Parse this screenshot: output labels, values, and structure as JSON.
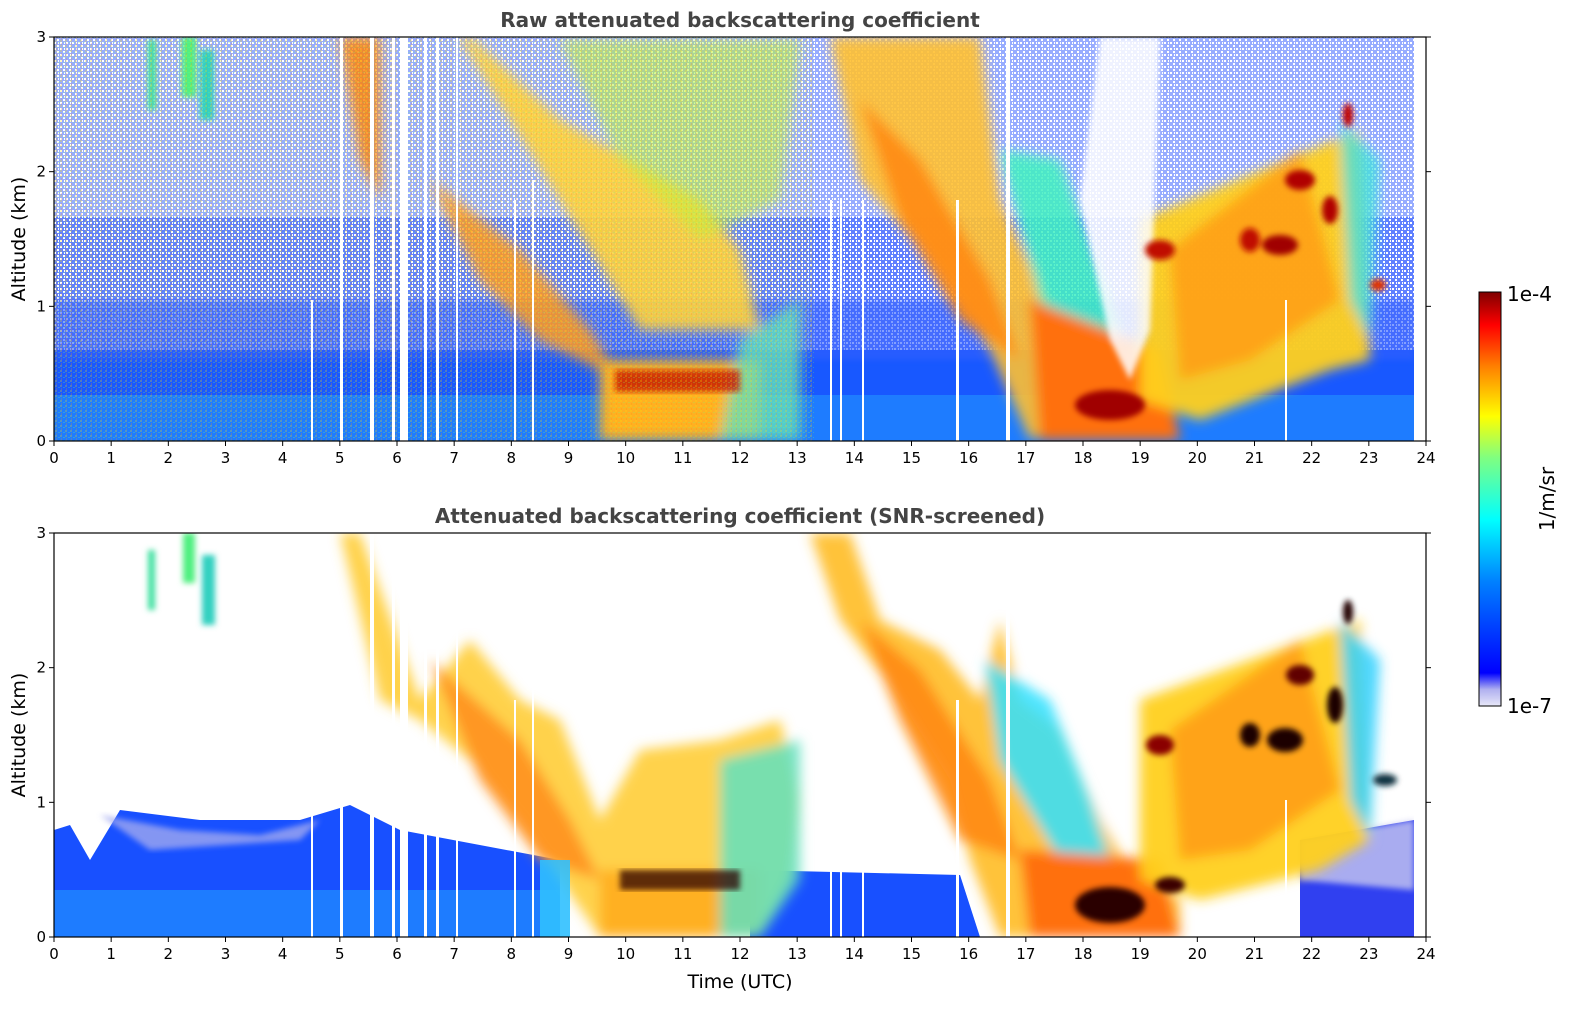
{
  "chart_data": [
    {
      "type": "heatmap",
      "title": "Raw attenuated backscattering coefficient",
      "xlabel": "",
      "ylabel": "Altitude (km)",
      "xlim": [
        0,
        24
      ],
      "ylim": [
        0,
        3
      ],
      "x_ticks": [
        "0",
        "1",
        "2",
        "3",
        "4",
        "5",
        "6",
        "7",
        "8",
        "9",
        "10",
        "11",
        "12",
        "13",
        "14",
        "15",
        "16",
        "17",
        "18",
        "19",
        "20",
        "21",
        "22",
        "23",
        "24"
      ],
      "y_ticks": [
        "0",
        "1",
        "2",
        "3"
      ],
      "grid": false,
      "screened": false
    },
    {
      "type": "heatmap",
      "title": "Attenuated backscattering coefficient (SNR-screened)",
      "xlabel": "Time (UTC)",
      "ylabel": "Altitude (km)",
      "xlim": [
        0,
        24
      ],
      "ylim": [
        0,
        3
      ],
      "x_ticks": [
        "0",
        "1",
        "2",
        "3",
        "4",
        "5",
        "6",
        "7",
        "8",
        "9",
        "10",
        "11",
        "12",
        "13",
        "14",
        "15",
        "16",
        "17",
        "18",
        "19",
        "20",
        "21",
        "22",
        "23",
        "24"
      ],
      "y_ticks": [
        "0",
        "1",
        "2",
        "3"
      ],
      "grid": false,
      "screened": true
    }
  ],
  "colorbar": {
    "label": "1/m/sr",
    "max_label": "1e-4",
    "min_label": "1e-7",
    "scale": "log",
    "colormap": "jet",
    "colors": [
      "#e8e8f8",
      "#0000ff",
      "#00ffff",
      "#ffff00",
      "#ff7f00",
      "#7f0000"
    ]
  }
}
